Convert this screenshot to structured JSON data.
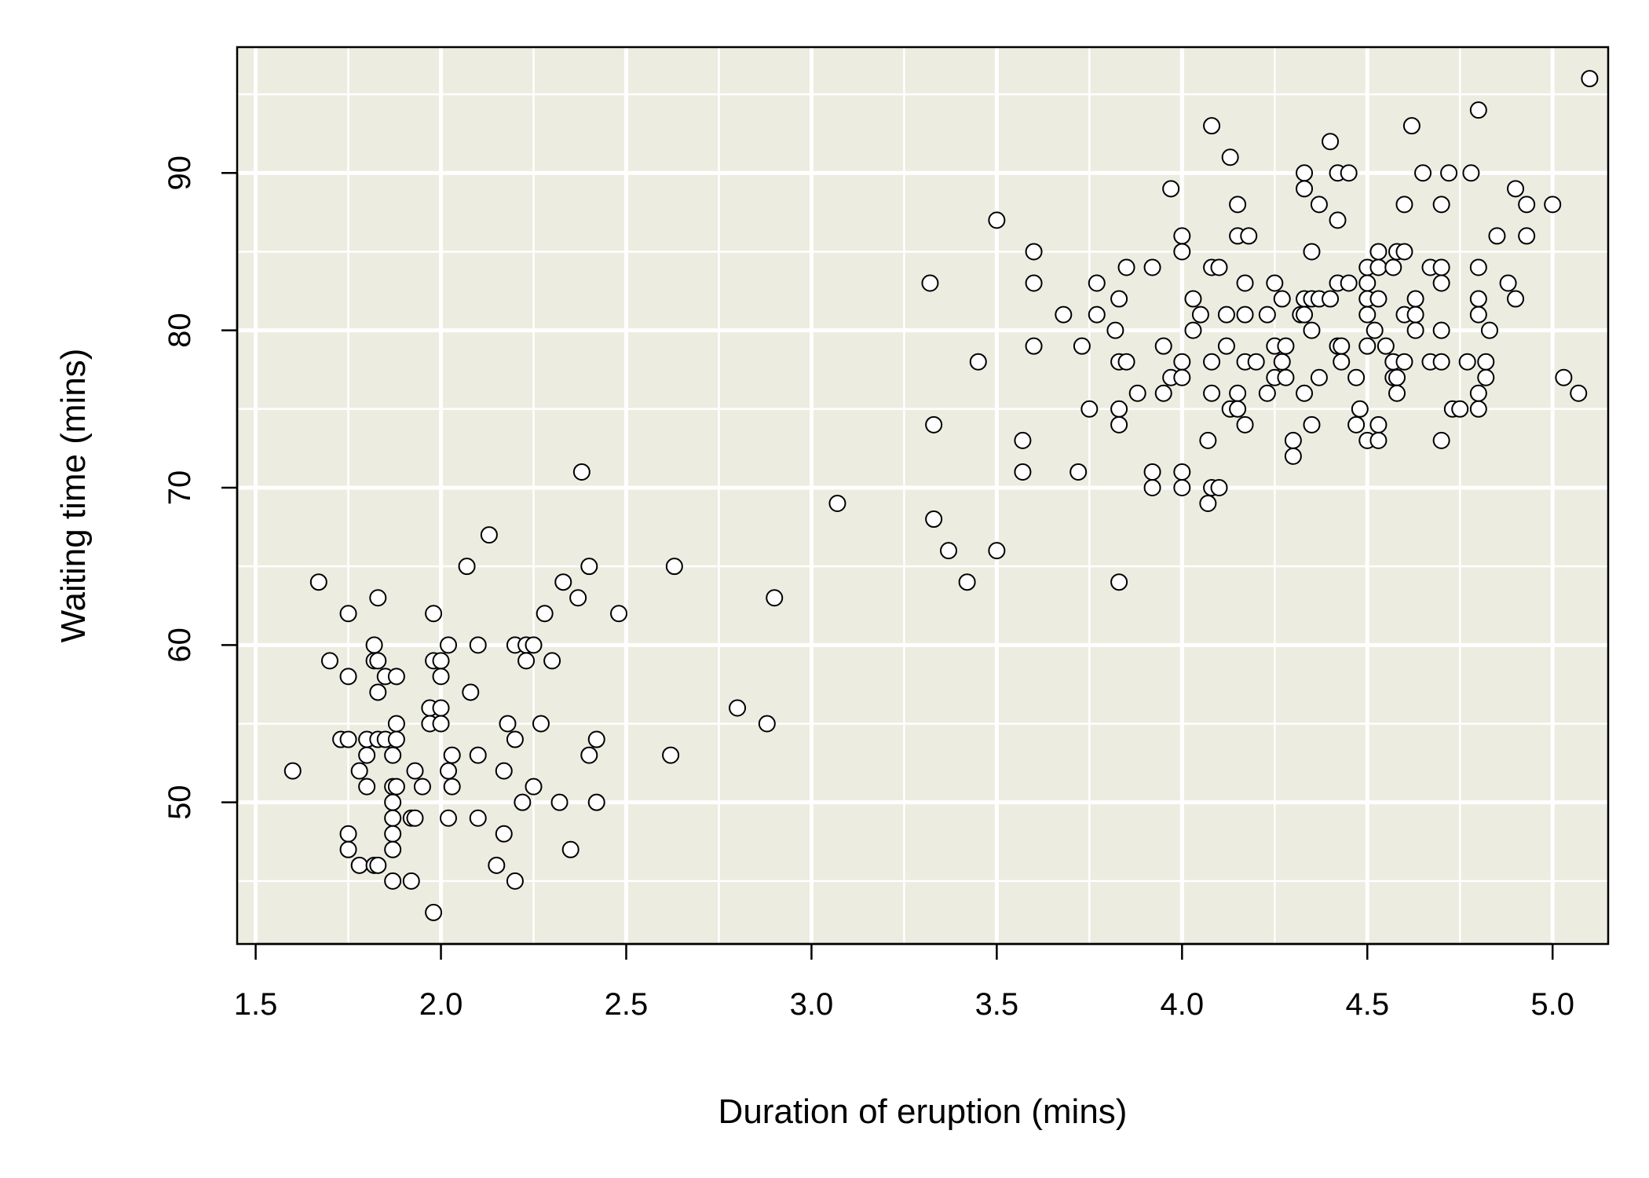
{
  "chart_data": {
    "type": "scatter",
    "title": "",
    "xlabel": "Duration of eruption (mins)",
    "ylabel": "Waiting time (mins)",
    "xlim": [
      1.45,
      5.15
    ],
    "ylim": [
      41,
      98
    ],
    "x_ticks": [
      1.5,
      2.0,
      2.5,
      3.0,
      3.5,
      4.0,
      4.5,
      5.0
    ],
    "x_tick_labels": [
      "1.5",
      "2.0",
      "2.5",
      "3.0",
      "3.5",
      "4.0",
      "4.5",
      "5.0"
    ],
    "y_ticks": [
      50,
      60,
      70,
      80,
      90
    ],
    "y_tick_labels": [
      "50",
      "60",
      "70",
      "80",
      "90"
    ],
    "grid": true,
    "colors": {
      "panel_background": "#ecece0",
      "grid": "#ffffff",
      "marker_fill": "#ffffff",
      "marker_stroke": "#000000"
    },
    "points": [
      [
        1.6,
        52
      ],
      [
        1.67,
        64
      ],
      [
        1.7,
        59
      ],
      [
        1.73,
        54
      ],
      [
        1.75,
        54
      ],
      [
        1.75,
        62
      ],
      [
        1.75,
        58
      ],
      [
        1.75,
        48
      ],
      [
        1.75,
        47
      ],
      [
        1.78,
        46
      ],
      [
        1.78,
        52
      ],
      [
        1.8,
        54
      ],
      [
        1.8,
        53
      ],
      [
        1.8,
        51
      ],
      [
        1.82,
        60
      ],
      [
        1.82,
        59
      ],
      [
        1.82,
        46
      ],
      [
        1.83,
        63
      ],
      [
        1.83,
        57
      ],
      [
        1.83,
        54
      ],
      [
        1.83,
        59
      ],
      [
        1.83,
        46
      ],
      [
        1.85,
        58
      ],
      [
        1.85,
        54
      ],
      [
        1.87,
        53
      ],
      [
        1.87,
        51
      ],
      [
        1.87,
        50
      ],
      [
        1.87,
        49
      ],
      [
        1.87,
        48
      ],
      [
        1.87,
        47
      ],
      [
        1.87,
        45
      ],
      [
        1.88,
        55
      ],
      [
        1.88,
        58
      ],
      [
        1.88,
        54
      ],
      [
        1.88,
        51
      ],
      [
        1.92,
        45
      ],
      [
        1.92,
        49
      ],
      [
        1.93,
        52
      ],
      [
        1.93,
        49
      ],
      [
        1.95,
        51
      ],
      [
        1.97,
        56
      ],
      [
        1.97,
        55
      ],
      [
        1.98,
        62
      ],
      [
        1.98,
        59
      ],
      [
        1.98,
        43
      ],
      [
        2.0,
        59
      ],
      [
        2.0,
        58
      ],
      [
        2.0,
        56
      ],
      [
        2.0,
        55
      ],
      [
        2.02,
        60
      ],
      [
        2.02,
        52
      ],
      [
        2.02,
        49
      ],
      [
        2.03,
        53
      ],
      [
        2.03,
        51
      ],
      [
        2.07,
        65
      ],
      [
        2.08,
        57
      ],
      [
        2.1,
        60
      ],
      [
        2.1,
        53
      ],
      [
        2.1,
        49
      ],
      [
        2.13,
        67
      ],
      [
        2.15,
        46
      ],
      [
        2.17,
        52
      ],
      [
        2.17,
        48
      ],
      [
        2.18,
        55
      ],
      [
        2.2,
        60
      ],
      [
        2.2,
        54
      ],
      [
        2.2,
        45
      ],
      [
        2.22,
        50
      ],
      [
        2.23,
        60
      ],
      [
        2.23,
        59
      ],
      [
        2.25,
        60
      ],
      [
        2.25,
        51
      ],
      [
        2.27,
        55
      ],
      [
        2.28,
        62
      ],
      [
        2.3,
        59
      ],
      [
        2.32,
        50
      ],
      [
        2.33,
        64
      ],
      [
        2.35,
        47
      ],
      [
        2.37,
        63
      ],
      [
        2.38,
        71
      ],
      [
        2.4,
        65
      ],
      [
        2.4,
        53
      ],
      [
        2.42,
        54
      ],
      [
        2.42,
        50
      ],
      [
        2.48,
        62
      ],
      [
        2.62,
        53
      ],
      [
        2.63,
        65
      ],
      [
        2.8,
        56
      ],
      [
        2.88,
        55
      ],
      [
        2.9,
        63
      ],
      [
        3.07,
        69
      ],
      [
        3.32,
        83
      ],
      [
        3.33,
        74
      ],
      [
        3.33,
        68
      ],
      [
        3.37,
        66
      ],
      [
        3.42,
        64
      ],
      [
        3.45,
        78
      ],
      [
        3.5,
        87
      ],
      [
        3.5,
        66
      ],
      [
        3.57,
        73
      ],
      [
        3.57,
        71
      ],
      [
        3.6,
        85
      ],
      [
        3.6,
        83
      ],
      [
        3.6,
        79
      ],
      [
        3.68,
        81
      ],
      [
        3.72,
        71
      ],
      [
        3.73,
        79
      ],
      [
        3.75,
        75
      ],
      [
        3.77,
        83
      ],
      [
        3.77,
        81
      ],
      [
        3.82,
        80
      ],
      [
        3.83,
        82
      ],
      [
        3.83,
        78
      ],
      [
        3.83,
        75
      ],
      [
        3.83,
        74
      ],
      [
        3.83,
        64
      ],
      [
        3.85,
        84
      ],
      [
        3.85,
        78
      ],
      [
        3.88,
        76
      ],
      [
        3.92,
        84
      ],
      [
        3.92,
        71
      ],
      [
        3.92,
        70
      ],
      [
        3.95,
        79
      ],
      [
        3.95,
        76
      ],
      [
        3.97,
        89
      ],
      [
        3.97,
        77
      ],
      [
        4.0,
        86
      ],
      [
        4.0,
        85
      ],
      [
        4.0,
        78
      ],
      [
        4.0,
        77
      ],
      [
        4.0,
        71
      ],
      [
        4.0,
        70
      ],
      [
        4.03,
        82
      ],
      [
        4.03,
        80
      ],
      [
        4.05,
        81
      ],
      [
        4.07,
        73
      ],
      [
        4.07,
        69
      ],
      [
        4.08,
        93
      ],
      [
        4.08,
        84
      ],
      [
        4.08,
        78
      ],
      [
        4.08,
        76
      ],
      [
        4.08,
        70
      ],
      [
        4.1,
        84
      ],
      [
        4.1,
        70
      ],
      [
        4.12,
        81
      ],
      [
        4.12,
        79
      ],
      [
        4.13,
        91
      ],
      [
        4.13,
        75
      ],
      [
        4.15,
        88
      ],
      [
        4.15,
        86
      ],
      [
        4.15,
        76
      ],
      [
        4.15,
        75
      ],
      [
        4.17,
        83
      ],
      [
        4.17,
        81
      ],
      [
        4.17,
        78
      ],
      [
        4.17,
        74
      ],
      [
        4.18,
        86
      ],
      [
        4.2,
        78
      ],
      [
        4.23,
        81
      ],
      [
        4.23,
        76
      ],
      [
        4.25,
        83
      ],
      [
        4.25,
        79
      ],
      [
        4.25,
        77
      ],
      [
        4.27,
        82
      ],
      [
        4.27,
        78
      ],
      [
        4.28,
        79
      ],
      [
        4.28,
        77
      ],
      [
        4.3,
        73
      ],
      [
        4.3,
        72
      ],
      [
        4.32,
        81
      ],
      [
        4.33,
        90
      ],
      [
        4.33,
        89
      ],
      [
        4.33,
        82
      ],
      [
        4.33,
        81
      ],
      [
        4.33,
        76
      ],
      [
        4.35,
        85
      ],
      [
        4.35,
        82
      ],
      [
        4.35,
        80
      ],
      [
        4.35,
        74
      ],
      [
        4.37,
        88
      ],
      [
        4.37,
        82
      ],
      [
        4.37,
        77
      ],
      [
        4.4,
        92
      ],
      [
        4.4,
        82
      ],
      [
        4.42,
        90
      ],
      [
        4.42,
        87
      ],
      [
        4.42,
        83
      ],
      [
        4.42,
        79
      ],
      [
        4.43,
        79
      ],
      [
        4.43,
        78
      ],
      [
        4.45,
        90
      ],
      [
        4.45,
        83
      ],
      [
        4.47,
        77
      ],
      [
        4.47,
        74
      ],
      [
        4.48,
        75
      ],
      [
        4.5,
        84
      ],
      [
        4.5,
        83
      ],
      [
        4.5,
        82
      ],
      [
        4.5,
        81
      ],
      [
        4.5,
        79
      ],
      [
        4.5,
        73
      ],
      [
        4.52,
        80
      ],
      [
        4.53,
        85
      ],
      [
        4.53,
        84
      ],
      [
        4.53,
        82
      ],
      [
        4.53,
        74
      ],
      [
        4.53,
        73
      ],
      [
        4.55,
        79
      ],
      [
        4.57,
        84
      ],
      [
        4.57,
        78
      ],
      [
        4.57,
        77
      ],
      [
        4.58,
        85
      ],
      [
        4.58,
        77
      ],
      [
        4.58,
        76
      ],
      [
        4.6,
        88
      ],
      [
        4.6,
        85
      ],
      [
        4.6,
        81
      ],
      [
        4.6,
        78
      ],
      [
        4.62,
        93
      ],
      [
        4.63,
        82
      ],
      [
        4.63,
        81
      ],
      [
        4.63,
        80
      ],
      [
        4.65,
        90
      ],
      [
        4.67,
        84
      ],
      [
        4.67,
        78
      ],
      [
        4.7,
        88
      ],
      [
        4.7,
        84
      ],
      [
        4.7,
        83
      ],
      [
        4.7,
        80
      ],
      [
        4.7,
        78
      ],
      [
        4.7,
        73
      ],
      [
        4.72,
        90
      ],
      [
        4.73,
        75
      ],
      [
        4.75,
        75
      ],
      [
        4.77,
        78
      ],
      [
        4.78,
        90
      ],
      [
        4.8,
        94
      ],
      [
        4.8,
        84
      ],
      [
        4.8,
        82
      ],
      [
        4.8,
        81
      ],
      [
        4.8,
        76
      ],
      [
        4.8,
        75
      ],
      [
        4.82,
        78
      ],
      [
        4.82,
        77
      ],
      [
        4.83,
        80
      ],
      [
        4.85,
        86
      ],
      [
        4.88,
        83
      ],
      [
        4.9,
        89
      ],
      [
        4.9,
        82
      ],
      [
        4.93,
        88
      ],
      [
        4.93,
        86
      ],
      [
        5.0,
        88
      ],
      [
        5.03,
        77
      ],
      [
        5.07,
        76
      ],
      [
        5.1,
        96
      ]
    ]
  }
}
